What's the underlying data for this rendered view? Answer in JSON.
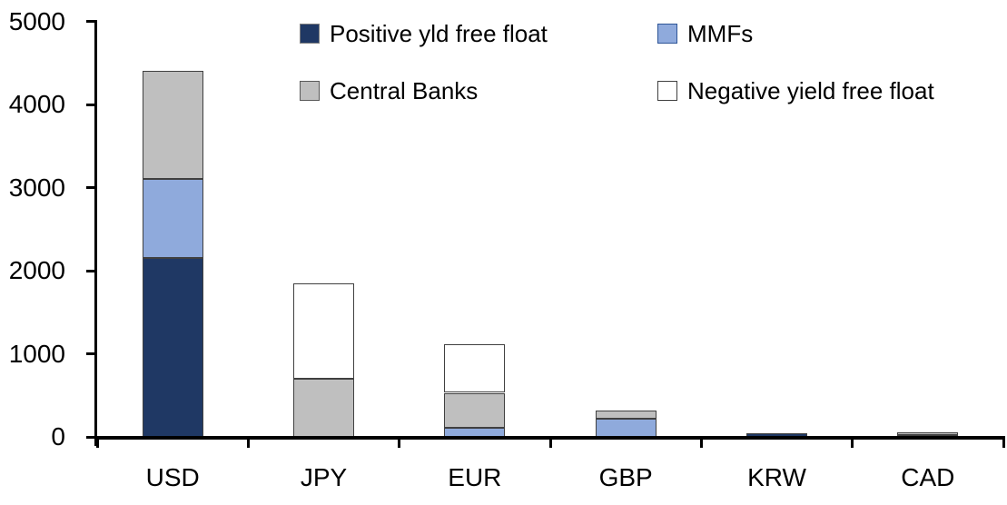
{
  "chart_data": {
    "type": "bar",
    "stacked": true,
    "title": "",
    "xlabel": "",
    "ylabel": "",
    "categories": [
      "USD",
      "JPY",
      "EUR",
      "GBP",
      "KRW",
      "CAD"
    ],
    "series": [
      {
        "name": "Positive yld free float",
        "color": "#1F3864",
        "swatch_border": "#7F7F7F",
        "values": [
          2150,
          0,
          0,
          0,
          45,
          25
        ]
      },
      {
        "name": "MMFs",
        "color": "#8FAADC",
        "swatch_border": "#2E5597",
        "values": [
          950,
          0,
          110,
          215,
          0,
          0
        ]
      },
      {
        "name": "Central Banks",
        "color": "#BFBFBF",
        "swatch_border": "#595959",
        "values": [
          1300,
          700,
          420,
          100,
          0,
          35
        ]
      },
      {
        "name": "Negative yield free float",
        "color": "#FFFFFF",
        "swatch_border": "#404040",
        "values": [
          0,
          1150,
          580,
          0,
          0,
          0
        ]
      }
    ],
    "totals": {
      "USD": 4400,
      "JPY": 1850,
      "EUR": 1110,
      "GBP": 315,
      "KRW": 45,
      "CAD": 60
    },
    "ylim": [
      0,
      5000
    ],
    "yticks": [
      "0",
      "1000",
      "2000",
      "3000",
      "4000",
      "5000"
    ],
    "grid": false,
    "legend_position": "top",
    "axis_color": "#000000",
    "segment_border_color": "#404040",
    "background_color": "#FFFFFF"
  }
}
